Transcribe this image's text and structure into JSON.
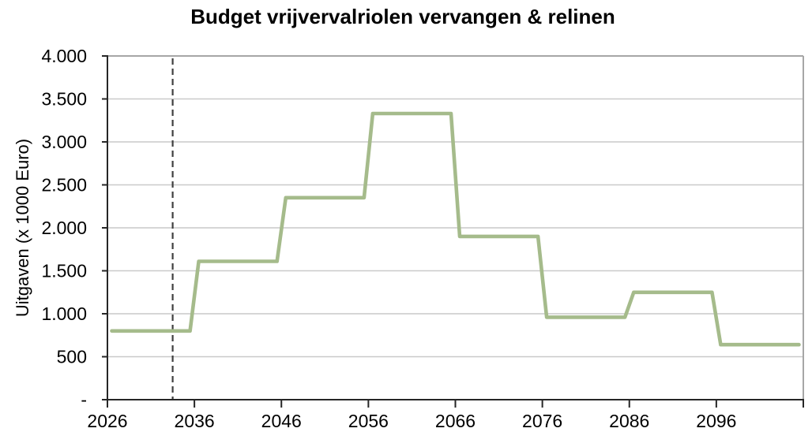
{
  "chart_data": {
    "type": "line",
    "subtype": "step",
    "title": "Budget vrijvervalriolen vervangen & relinen",
    "xlabel": "",
    "ylabel": "Uitgaven (x 1000 Euro)",
    "x_range": [
      2026,
      2106
    ],
    "ylim": [
      0,
      4000
    ],
    "x_tick_interval": 10,
    "y_tick_interval": 500,
    "y_tick_labels": [
      "-",
      "500",
      "1.000",
      "1.500",
      "2.000",
      "2.500",
      "3.000",
      "3.500",
      "4.000"
    ],
    "x_tick_labels": [
      "2026",
      "2036",
      "2046",
      "2056",
      "2066",
      "2076",
      "2086",
      "2096"
    ],
    "grid": "horizontal",
    "legend": "none",
    "series": [
      {
        "color": "#A5BB8B",
        "step_values": [
          {
            "years": "2026-2035",
            "value": 800
          },
          {
            "years": "2036-2045",
            "value": 1610
          },
          {
            "years": "2046-2055",
            "value": 2350
          },
          {
            "years": "2056-2065",
            "value": 3330
          },
          {
            "years": "2066-2075",
            "value": 1900
          },
          {
            "years": "2076-2085",
            "value": 960
          },
          {
            "years": "2086-2095",
            "value": 1250
          },
          {
            "years": "2096-2105",
            "value": 640
          }
        ],
        "points": [
          [
            2026,
            800
          ],
          [
            2035,
            800
          ],
          [
            2036,
            1610
          ],
          [
            2045,
            1610
          ],
          [
            2046,
            2350
          ],
          [
            2055,
            2350
          ],
          [
            2056,
            3330
          ],
          [
            2065,
            3330
          ],
          [
            2066,
            1900
          ],
          [
            2075,
            1900
          ],
          [
            2076,
            960
          ],
          [
            2085,
            960
          ],
          [
            2086,
            1250
          ],
          [
            2095,
            1250
          ],
          [
            2096,
            640
          ],
          [
            2105,
            640
          ]
        ]
      }
    ],
    "reference_line": {
      "type": "vertical",
      "style": "dashed",
      "x": 2033,
      "color": "#3F3F3F"
    }
  },
  "style": {
    "background": "#FFFFFF",
    "axis_color": "#262626",
    "gridline_color": "#C9C9C9",
    "border_color": "#A6A6A6",
    "text_color": "#000000"
  }
}
